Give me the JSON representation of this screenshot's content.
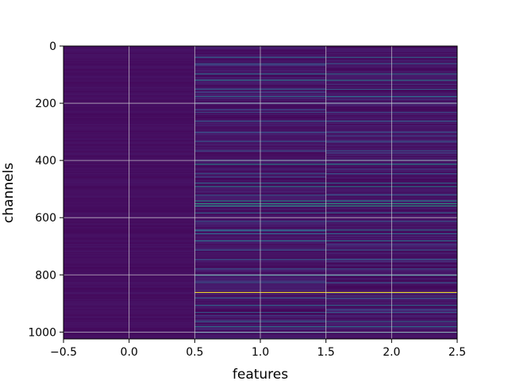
{
  "chart_data": {
    "type": "heatmap",
    "title": "",
    "xlabel": "features",
    "ylabel": "channels",
    "xlim": [
      -0.5,
      2.5
    ],
    "ylim": [
      1024,
      0
    ],
    "y_inverted": true,
    "x_ticks": [
      {
        "value": -0.5,
        "label": "−0.5"
      },
      {
        "value": 0.0,
        "label": "0.0"
      },
      {
        "value": 0.5,
        "label": "0.5"
      },
      {
        "value": 1.0,
        "label": "1.0"
      },
      {
        "value": 1.5,
        "label": "1.5"
      },
      {
        "value": 2.0,
        "label": "2.0"
      },
      {
        "value": 2.5,
        "label": "2.5"
      }
    ],
    "y_ticks": [
      {
        "value": 0,
        "label": "0"
      },
      {
        "value": 200,
        "label": "200"
      },
      {
        "value": 400,
        "label": "400"
      },
      {
        "value": 600,
        "label": "600"
      },
      {
        "value": 800,
        "label": "800"
      },
      {
        "value": 1000,
        "label": "1000"
      }
    ],
    "grid": true,
    "colormap": "viridis",
    "columns": [
      0,
      1,
      2
    ],
    "n_channels": 1024,
    "column_0_level": 0.03,
    "bright_rows": [
      {
        "channel": 38,
        "value": 0.35
      },
      {
        "channel": 60,
        "value": 0.3
      },
      {
        "channel": 96,
        "value": 0.4
      },
      {
        "channel": 118,
        "value": 0.45
      },
      {
        "channel": 150,
        "value": 0.3
      },
      {
        "channel": 175,
        "value": 0.35
      },
      {
        "channel": 198,
        "value": 0.3
      },
      {
        "channel": 230,
        "value": 0.25
      },
      {
        "channel": 262,
        "value": 0.3
      },
      {
        "channel": 300,
        "value": 0.28
      },
      {
        "channel": 332,
        "value": 0.3
      },
      {
        "channel": 365,
        "value": 0.28
      },
      {
        "channel": 398,
        "value": 0.35
      },
      {
        "channel": 412,
        "value": 0.5
      },
      {
        "channel": 445,
        "value": 0.3
      },
      {
        "channel": 478,
        "value": 0.35
      },
      {
        "channel": 490,
        "value": 0.45
      },
      {
        "channel": 520,
        "value": 0.3
      },
      {
        "channel": 540,
        "value": 0.5
      },
      {
        "channel": 550,
        "value": 0.6
      },
      {
        "channel": 558,
        "value": 0.55
      },
      {
        "channel": 582,
        "value": 0.35
      },
      {
        "channel": 612,
        "value": 0.3
      },
      {
        "channel": 642,
        "value": 0.4
      },
      {
        "channel": 655,
        "value": 0.35
      },
      {
        "channel": 680,
        "value": 0.4
      },
      {
        "channel": 712,
        "value": 0.3
      },
      {
        "channel": 745,
        "value": 0.3
      },
      {
        "channel": 778,
        "value": 0.28
      },
      {
        "channel": 800,
        "value": 0.45
      },
      {
        "channel": 826,
        "value": 0.3
      },
      {
        "channel": 860,
        "value": 1.0
      },
      {
        "channel": 880,
        "value": 0.3
      },
      {
        "channel": 905,
        "value": 0.35
      },
      {
        "channel": 930,
        "value": 0.3
      },
      {
        "channel": 962,
        "value": 0.35
      },
      {
        "channel": 980,
        "value": 0.4
      },
      {
        "channel": 1000,
        "value": 0.35
      }
    ]
  }
}
